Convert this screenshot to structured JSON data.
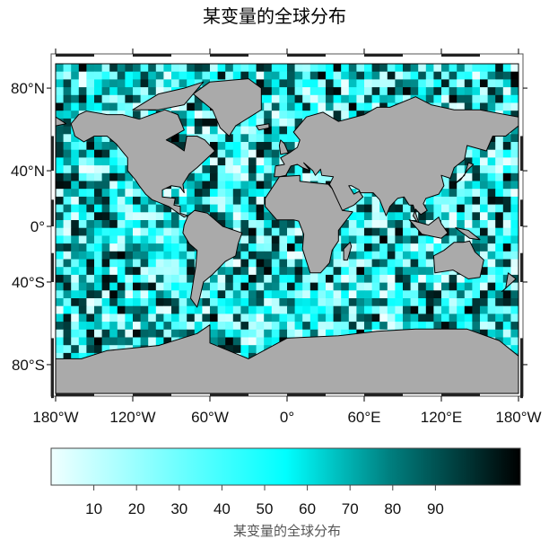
{
  "title": "某变量的全球分布",
  "map": {
    "projection": "Miller cylindrical",
    "land_color": "#aaaaaa",
    "coastline_color": "#000000",
    "lat_labels": [
      "80°N",
      "40°N",
      "0°",
      "40°S",
      "80°S"
    ],
    "lat_values": [
      80,
      40,
      0,
      -40,
      -80
    ],
    "lon_labels": [
      "180°W",
      "120°W",
      "60°W",
      "0°",
      "60°E",
      "120°E",
      "180°W"
    ],
    "lon_values": [
      -180,
      -120,
      -60,
      0,
      60,
      120,
      180
    ]
  },
  "colorbar": {
    "label": "某变量的全球分布",
    "range": [
      0,
      100
    ],
    "ticks": [
      "10",
      "20",
      "30",
      "40",
      "50",
      "60",
      "70",
      "80",
      "90"
    ],
    "tick_values": [
      10,
      20,
      30,
      40,
      50,
      60,
      70,
      80,
      90
    ],
    "colors": [
      "#f0ffff",
      "#00ffff",
      "#008080",
      "#000000"
    ]
  }
}
